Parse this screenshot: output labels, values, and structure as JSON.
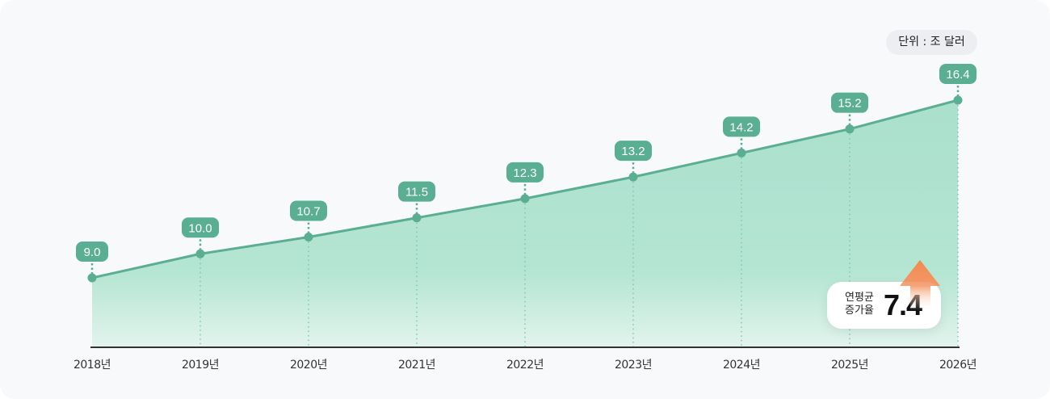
{
  "chart_data": {
    "type": "area",
    "categories": [
      "2018년",
      "2019년",
      "2020년",
      "2021년",
      "2022년",
      "2023년",
      "2024년",
      "2025년",
      "2026년"
    ],
    "values": [
      9.0,
      10.0,
      10.7,
      11.5,
      12.3,
      13.2,
      14.2,
      15.2,
      16.4
    ],
    "value_labels": [
      "9.0",
      "10.0",
      "10.7",
      "11.5",
      "12.3",
      "13.2",
      "14.2",
      "15.2",
      "16.4"
    ],
    "unit_label": "단위 : 조 달러",
    "grid": false,
    "colors": {
      "line": "#5aae92",
      "fill_top": "#a9e0cc",
      "fill_bottom": "#e2f4ed",
      "label_bg": "#5aae92",
      "arrow": "#f28a4f"
    }
  },
  "cagr": {
    "label_line1": "연평균",
    "label_line2": "증가율",
    "value": "7.4",
    "icon": "arrow-up-icon"
  }
}
